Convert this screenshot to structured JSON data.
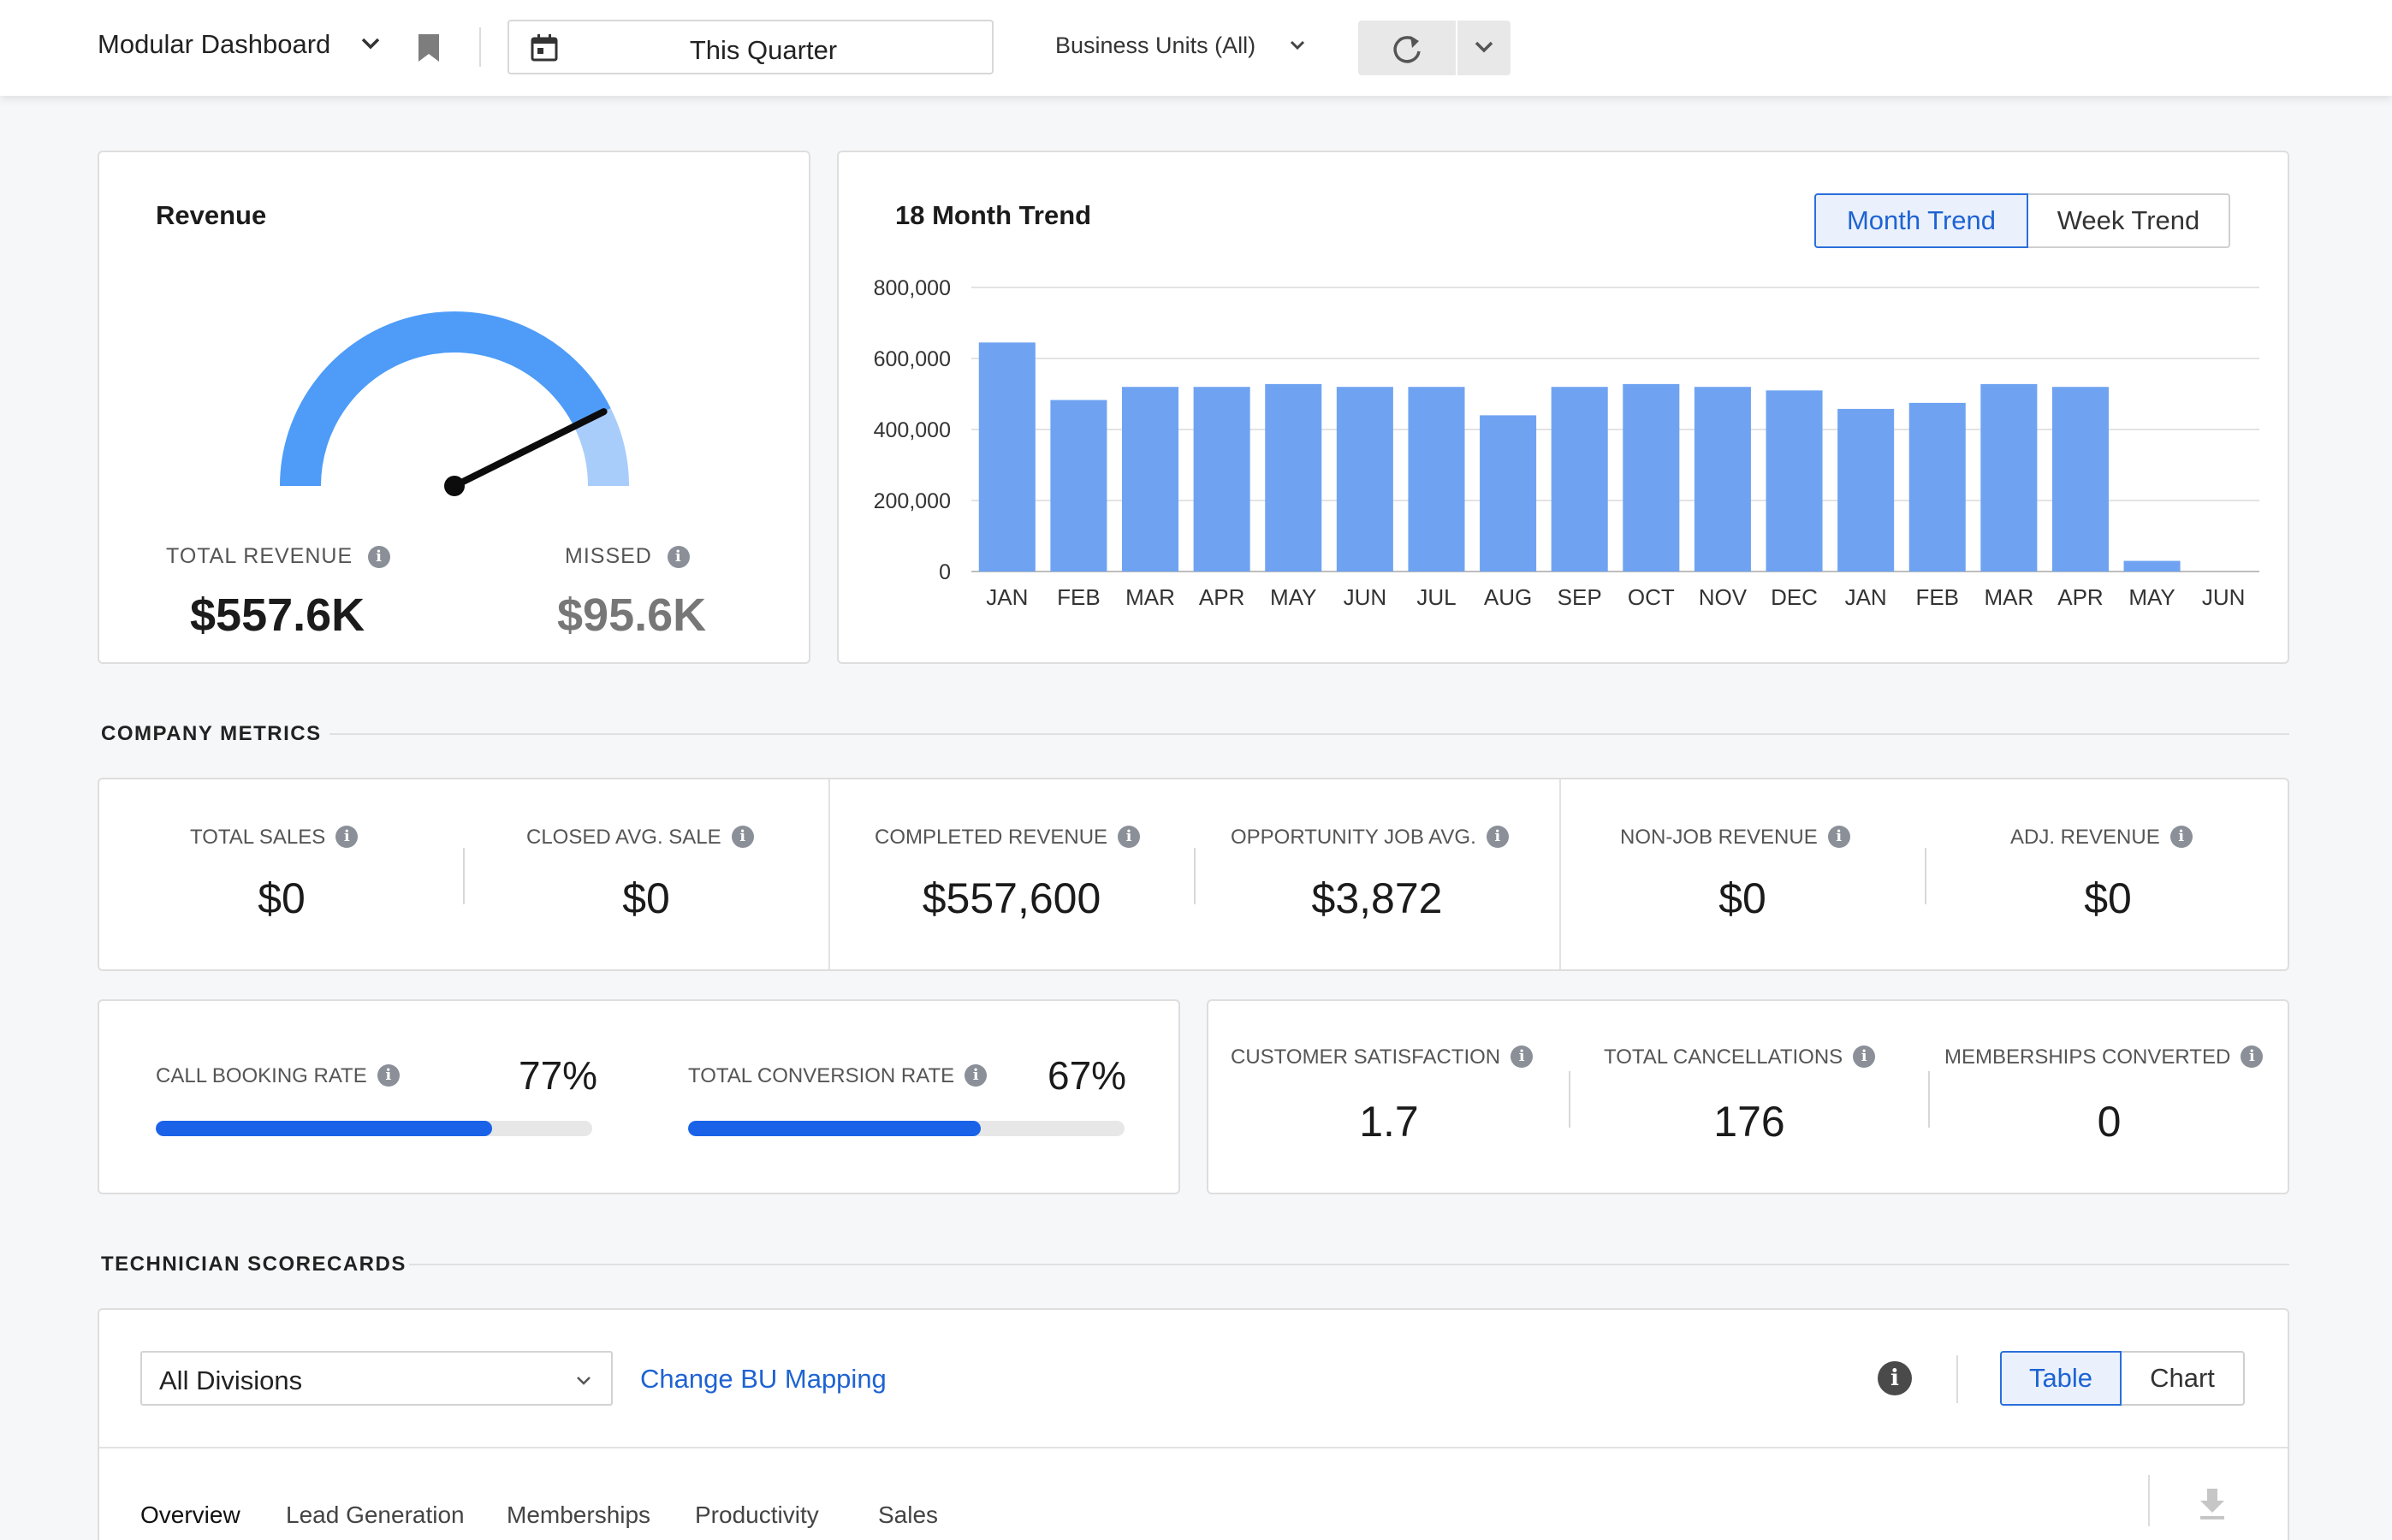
{
  "header": {
    "dashboard_title": "Modular Dashboard",
    "date_range": "This Quarter",
    "business_units": "Business Units (All)"
  },
  "revenue_card": {
    "title": "Revenue",
    "total_label": "TOTAL REVENUE",
    "total_value": "$557.6K",
    "missed_label": "MISSED",
    "missed_value": "$95.6K",
    "gauge_fraction": 0.853
  },
  "trend_card": {
    "title": "18 Month Trend",
    "toggle_month": "Month Trend",
    "toggle_week": "Week Trend",
    "active_toggle": "Month Trend"
  },
  "chart_data": {
    "type": "bar",
    "categories": [
      "JAN",
      "FEB",
      "MAR",
      "APR",
      "MAY",
      "JUN",
      "JUL",
      "AUG",
      "SEP",
      "OCT",
      "NOV",
      "DEC",
      "JAN",
      "FEB",
      "MAR",
      "APR",
      "MAY",
      "JUN"
    ],
    "values": [
      645000,
      483000,
      520000,
      520000,
      528000,
      520000,
      520000,
      440000,
      520000,
      528000,
      520000,
      510000,
      458000,
      475000,
      528000,
      520000,
      30000,
      0
    ],
    "yticks": [
      "800,000",
      "600,000",
      "400,000",
      "200,000",
      "0"
    ],
    "ylim": [
      0,
      800000
    ],
    "grid": true,
    "color": "#6fa3f2"
  },
  "company_metrics": {
    "section_title": "COMPANY METRICS",
    "items": [
      {
        "label": "TOTAL SALES",
        "value": "$0"
      },
      {
        "label": "CLOSED AVG. SALE",
        "value": "$0"
      },
      {
        "label": "COMPLETED REVENUE",
        "value": "$557,600"
      },
      {
        "label": "OPPORTUNITY JOB AVG.",
        "value": "$3,872"
      },
      {
        "label": "NON-JOB REVENUE",
        "value": "$0"
      },
      {
        "label": "ADJ. REVENUE",
        "value": "$0"
      }
    ]
  },
  "rates": {
    "call_booking_label": "CALL BOOKING RATE",
    "call_booking_value": "77%",
    "call_booking_fraction": 0.77,
    "conversion_label": "TOTAL CONVERSION RATE",
    "conversion_value": "67%",
    "conversion_fraction": 0.67
  },
  "customer_metrics": [
    {
      "label": "CUSTOMER SATISFACTION",
      "value": "1.7"
    },
    {
      "label": "TOTAL CANCELLATIONS",
      "value": "176"
    },
    {
      "label": "MEMBERSHIPS CONVERTED",
      "value": "0"
    }
  ],
  "technician": {
    "section_title": "TECHNICIAN SCORECARDS",
    "division_select": "All Divisions",
    "change_mapping_link": "Change BU Mapping",
    "view_table": "Table",
    "view_chart": "Chart",
    "tabs": [
      "Overview",
      "Lead Generation",
      "Memberships",
      "Productivity",
      "Sales"
    ],
    "active_tab": "Overview"
  },
  "colors": {
    "accent": "#1e63d2",
    "bar_fill": "#1a63e8",
    "gauge_main": "#4e9cf8",
    "gauge_rest": "#a9cdfa"
  },
  "icons": {
    "dropdown": "chevron-down-icon",
    "bookmark": "bookmark-icon",
    "calendar": "calendar-icon",
    "refresh": "refresh-icon",
    "info": "info-icon",
    "download": "download-icon"
  }
}
